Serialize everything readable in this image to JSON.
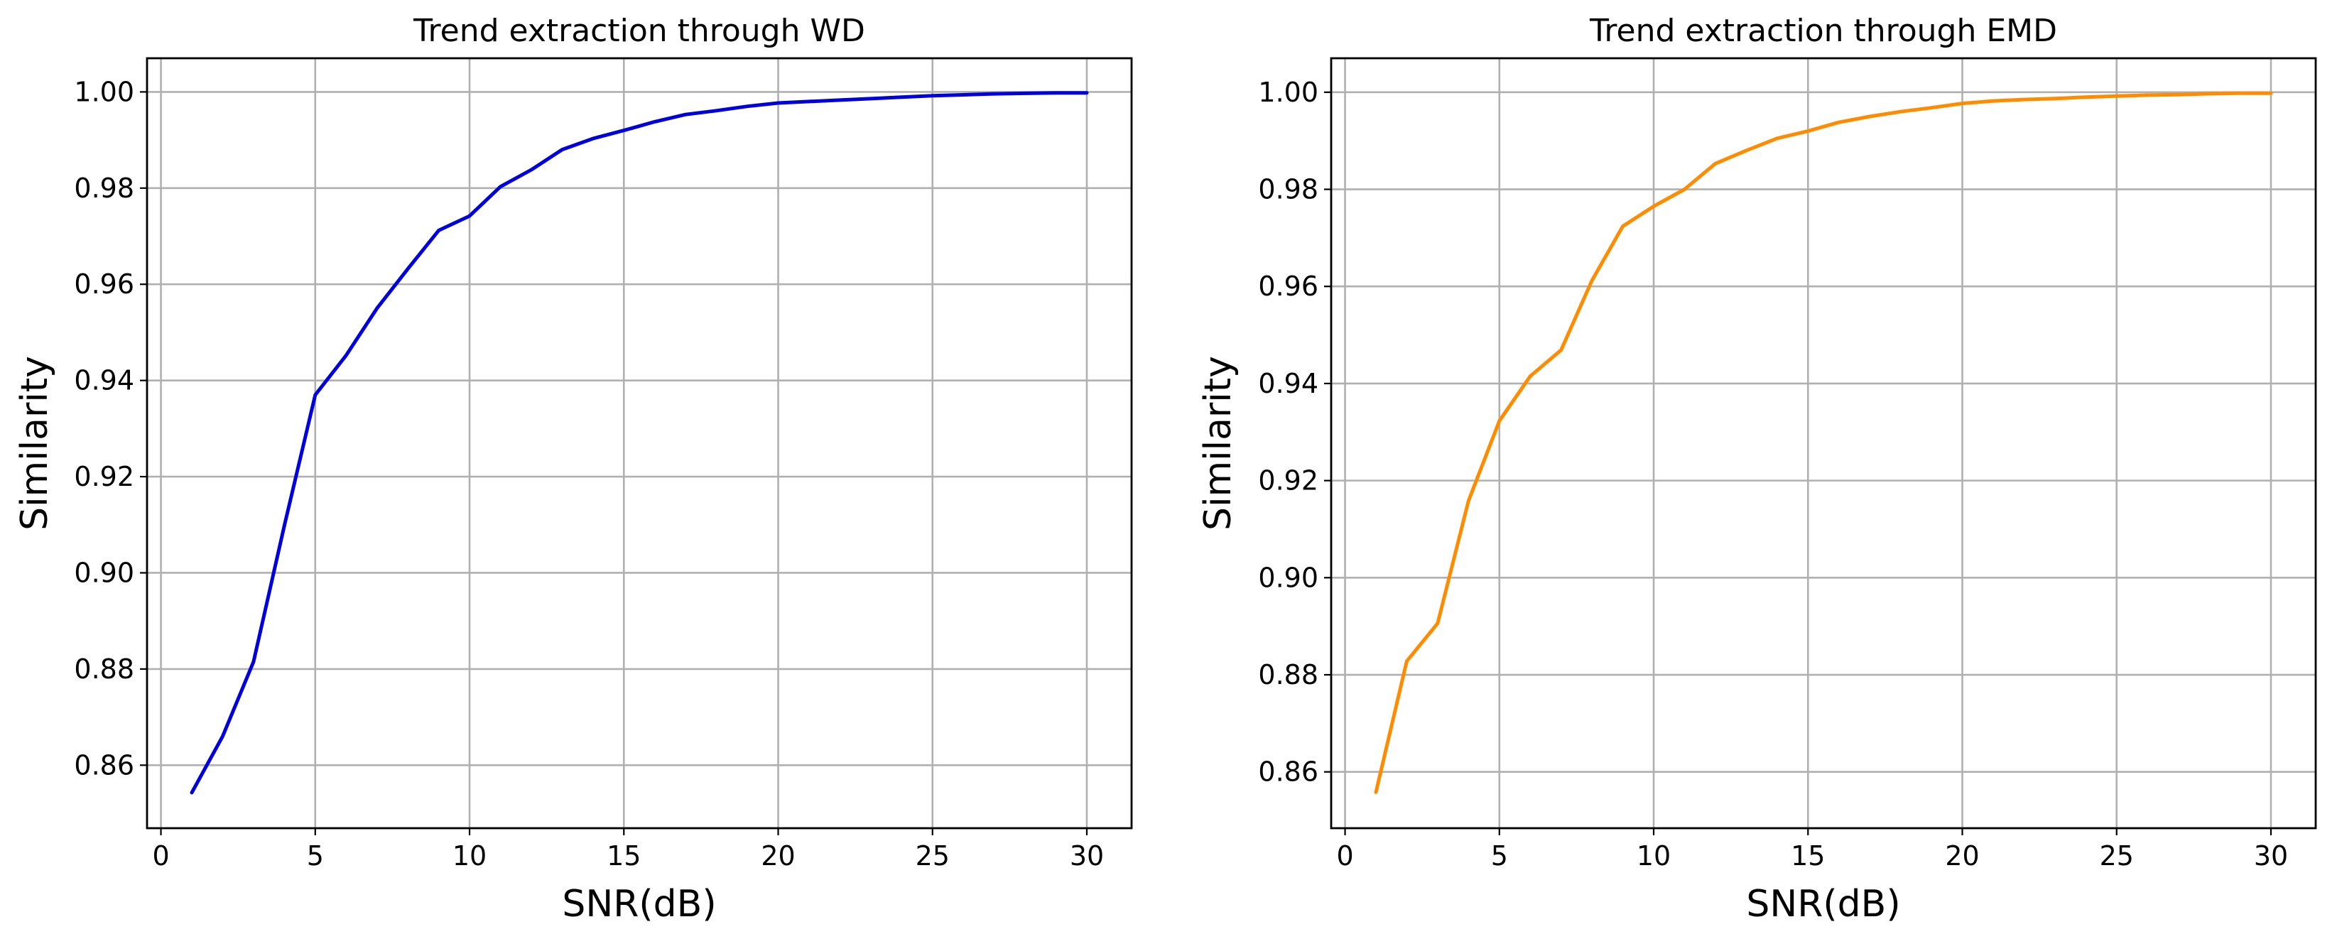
{
  "chart_data": [
    {
      "type": "line",
      "title": "Trend extraction through WD",
      "xlabel": "SNR(dB)",
      "ylabel": "Similarity",
      "xlim": [
        -0.45,
        31.45
      ],
      "ylim": [
        0.8469,
        1.007
      ],
      "xticks": [
        0,
        5,
        10,
        15,
        20,
        25,
        30
      ],
      "xtick_labels": [
        "0",
        "5",
        "10",
        "15",
        "20",
        "25",
        "30"
      ],
      "yticks": [
        0.86,
        0.88,
        0.9,
        0.92,
        0.94,
        0.96,
        0.98,
        1.0
      ],
      "ytick_labels": [
        "0.86",
        "0.88",
        "0.90",
        "0.92",
        "0.94",
        "0.96",
        "0.98",
        "1.00"
      ],
      "grid": true,
      "legend": "none",
      "series": [
        {
          "color": "#0000dd",
          "x": [
            1,
            2,
            3,
            4,
            5,
            6,
            7,
            8,
            9,
            10,
            11,
            12,
            13,
            14,
            15,
            16,
            17,
            18,
            19,
            20,
            21,
            22,
            23,
            24,
            25,
            26,
            27,
            28,
            29,
            30
          ],
          "y": [
            0.8543,
            0.866,
            0.8815,
            0.9098,
            0.937,
            0.9452,
            0.955,
            0.9632,
            0.9712,
            0.9742,
            0.9803,
            0.9838,
            0.988,
            0.9903,
            0.992,
            0.9938,
            0.9953,
            0.9961,
            0.997,
            0.9977,
            0.998,
            0.9983,
            0.9986,
            0.9989,
            0.9992,
            0.9994,
            0.9996,
            0.9997,
            0.9998,
            0.9998
          ]
        }
      ]
    },
    {
      "type": "line",
      "title": "Trend extraction through EMD",
      "xlabel": "SNR(dB)",
      "ylabel": "Similarity",
      "xlim": [
        -0.45,
        31.45
      ],
      "ylim": [
        0.8484,
        1.007
      ],
      "xticks": [
        0,
        5,
        10,
        15,
        20,
        25,
        30
      ],
      "xtick_labels": [
        "0",
        "5",
        "10",
        "15",
        "20",
        "25",
        "30"
      ],
      "yticks": [
        0.86,
        0.88,
        0.9,
        0.92,
        0.94,
        0.96,
        0.98,
        1.0
      ],
      "ytick_labels": [
        "0.86",
        "0.88",
        "0.90",
        "0.92",
        "0.94",
        "0.96",
        "0.98",
        "1.00"
      ],
      "grid": true,
      "legend": "none",
      "series": [
        {
          "color": "#ff8c00",
          "x": [
            1,
            2,
            3,
            4,
            5,
            6,
            7,
            8,
            9,
            10,
            11,
            12,
            13,
            14,
            15,
            16,
            17,
            18,
            19,
            20,
            21,
            22,
            23,
            24,
            25,
            26,
            27,
            28,
            29,
            30
          ],
          "y": [
            0.8558,
            0.8828,
            0.8906,
            0.9158,
            0.9323,
            0.9415,
            0.9469,
            0.9612,
            0.9724,
            0.9765,
            0.98,
            0.9853,
            0.988,
            0.9905,
            0.992,
            0.9938,
            0.995,
            0.996,
            0.9968,
            0.9977,
            0.9982,
            0.9985,
            0.9987,
            0.999,
            0.9992,
            0.9994,
            0.9995,
            0.9997,
            0.9998,
            0.9998
          ]
        }
      ]
    }
  ]
}
